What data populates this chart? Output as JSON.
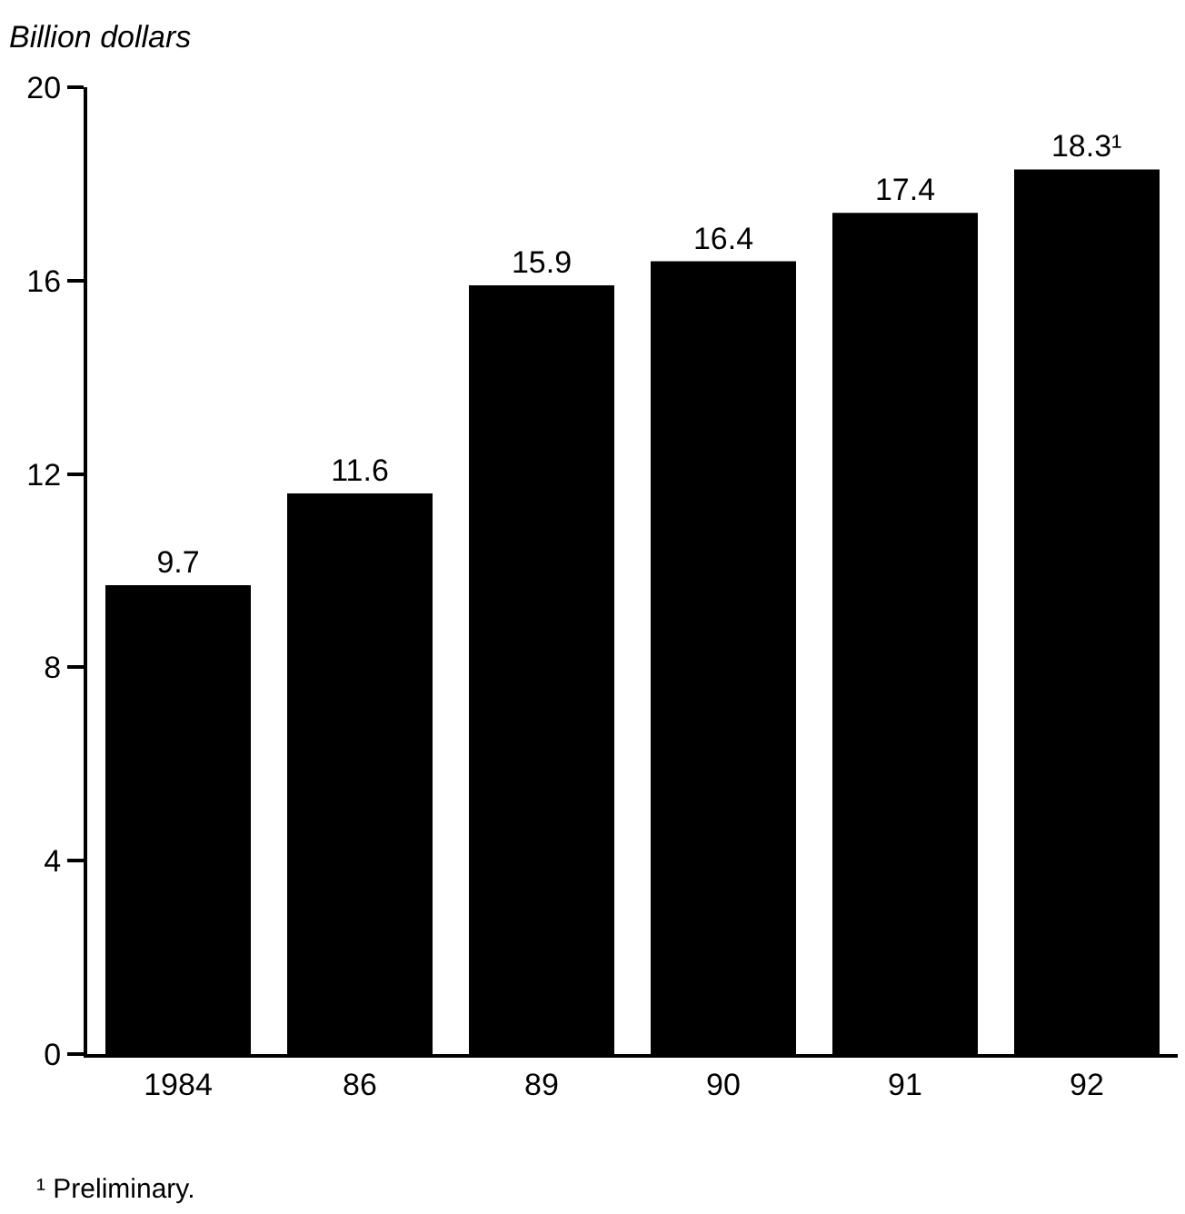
{
  "chart_data": {
    "type": "bar",
    "ylabel": "Billion dollars",
    "categories": [
      "1984",
      "86",
      "89",
      "90",
      "91",
      "92"
    ],
    "values": [
      9.7,
      11.6,
      15.9,
      16.4,
      17.4,
      18.3
    ],
    "value_labels": [
      "9.7",
      "11.6",
      "15.9",
      "16.4",
      "17.4",
      "18.3¹"
    ],
    "color": "#000000",
    "ylim": [
      0,
      20
    ],
    "yticks": [
      0,
      4,
      8,
      12,
      16,
      20
    ],
    "annotations": [
      "¹ Preliminary."
    ]
  }
}
